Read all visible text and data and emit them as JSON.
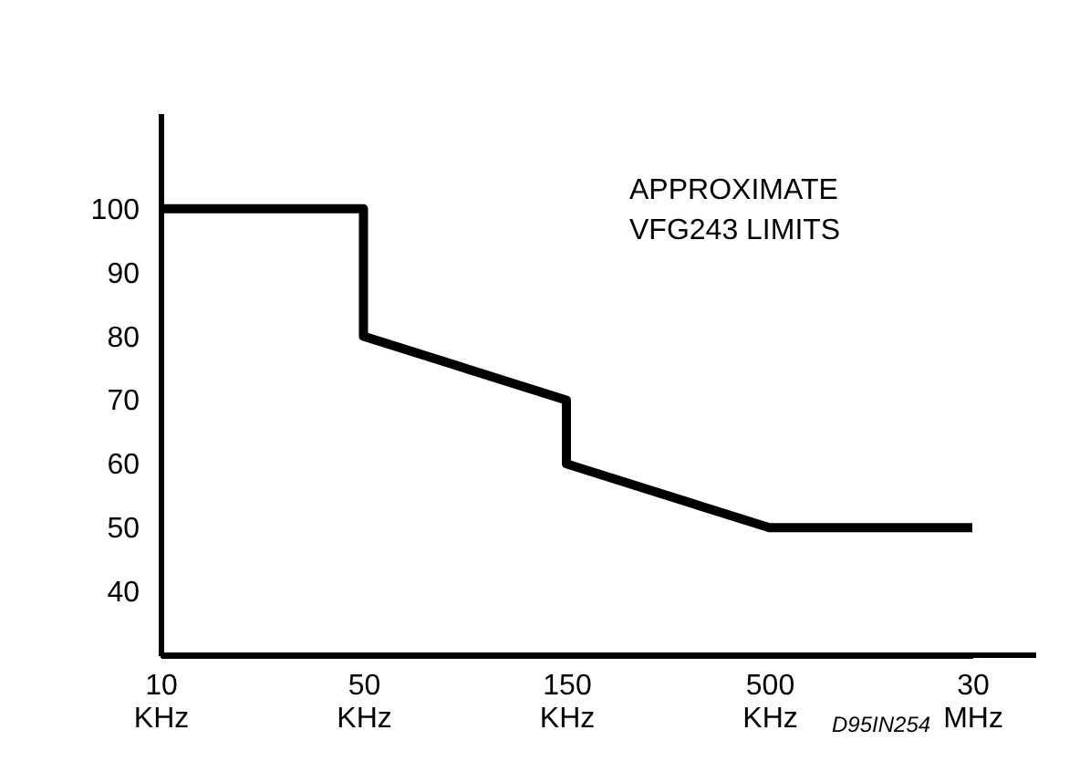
{
  "chart_data": {
    "type": "line",
    "categories": [
      "10 KHz",
      "50 KHz",
      "150 KHz",
      "500 KHz",
      "30 MHz"
    ],
    "series": [
      {
        "color": "#000000",
        "x": [
          "10 KHz",
          "50 KHz",
          "50 KHz",
          "150 KHz",
          "150 KHz",
          "500 KHz",
          "30 MHz"
        ],
        "values": [
          100,
          100,
          80,
          70,
          60,
          50,
          50
        ]
      }
    ],
    "ylim": [
      30,
      115
    ],
    "yticks": [
      40,
      50,
      60,
      70,
      80,
      90,
      100
    ],
    "grid": false,
    "marker": "none",
    "line_style": "solid",
    "annotations": [
      "APPROXIMATE VFG243 LIMITS",
      "D95IN254"
    ]
  }
}
